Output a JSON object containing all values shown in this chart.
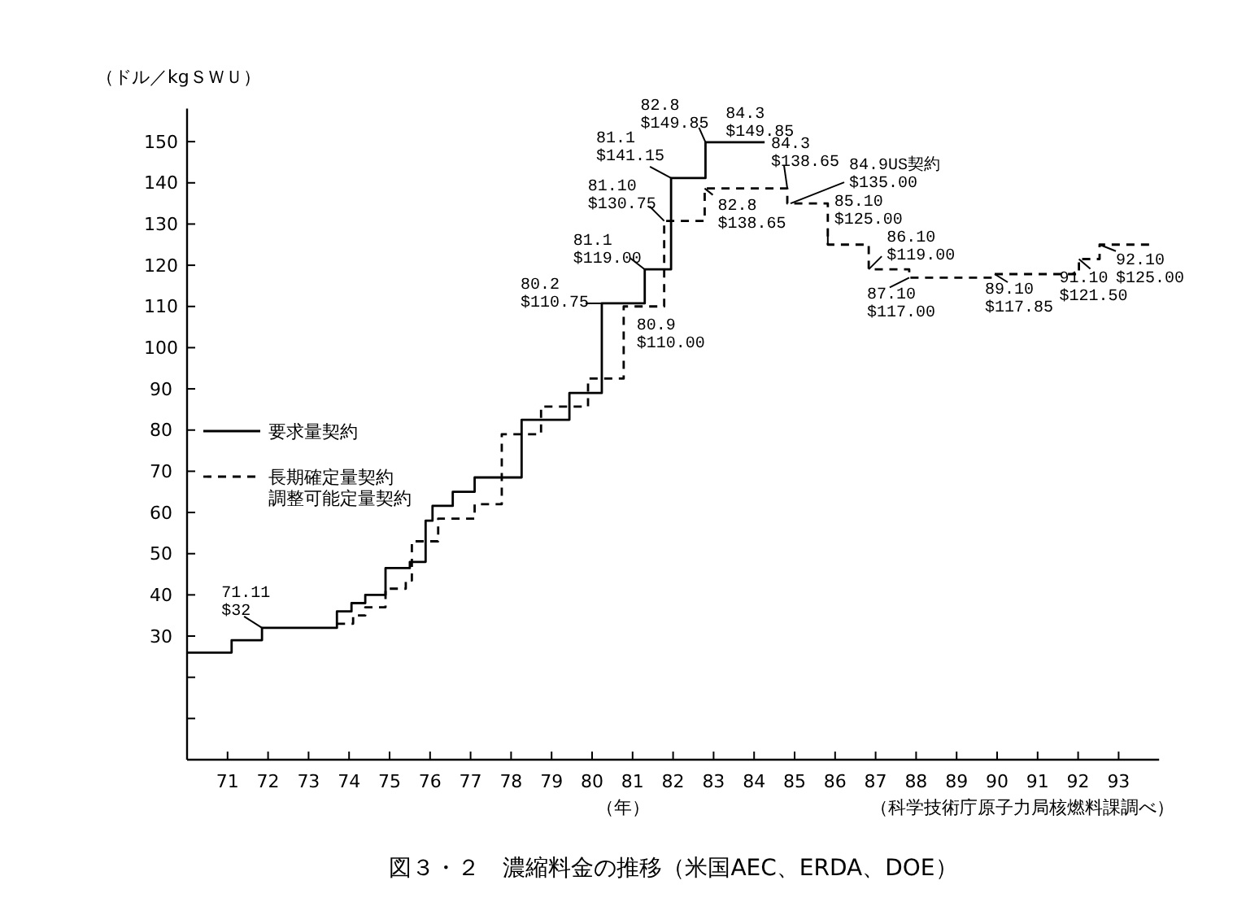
{
  "chart_data": {
    "type": "step",
    "title": "図３・２　濃縮料金の推移（米国AEC、ERDA、DOE）",
    "xlabel": "（年）",
    "ylabel": "（ドル／kgＳＷＵ）",
    "xlim": [
      70,
      94
    ],
    "xticks": [
      71,
      72,
      73,
      74,
      75,
      76,
      77,
      78,
      79,
      80,
      81,
      82,
      83,
      84,
      85,
      86,
      87,
      88,
      89,
      90,
      91,
      92,
      93
    ],
    "ylim": [
      0,
      158
    ],
    "yticks": [
      {
        "value": 10,
        "label": null
      },
      {
        "value": 20,
        "label": null
      },
      30,
      40,
      50,
      60,
      70,
      80,
      90,
      100,
      110,
      120,
      130,
      140,
      150
    ],
    "grid": false,
    "legend": "left",
    "marker": "none",
    "series": [
      {
        "name": "要求量契約",
        "color": "#000000",
        "line_style": "solid",
        "x": [
          70,
          71.1,
          71.85,
          73.7,
          74.06,
          74.4,
          74.9,
          75.5,
          75.89,
          76.06,
          76.56,
          77.1,
          78.26,
          79.44,
          80.24,
          81.3,
          81.95,
          82.8,
          84.26
        ],
        "values": [
          26,
          29,
          32,
          36,
          38,
          40,
          46.5,
          48,
          58,
          61.6,
          65,
          68.5,
          82.5,
          89,
          110.75,
          119,
          141.15,
          149.85,
          149.85
        ]
      },
      {
        "name": "長期確定量契約調整可能定量契約",
        "color": "#000000",
        "line_style": "dashed",
        "x": [
          73.7,
          74.1,
          74.4,
          74.9,
          75.4,
          75.55,
          76.2,
          77.1,
          77.77,
          78.74,
          79.9,
          80.78,
          81.78,
          82.78,
          84.82,
          85.82,
          86.83,
          87.83,
          89.94,
          92.02,
          92.53,
          93.8
        ],
        "values": [
          33,
          35,
          37,
          41.5,
          43.5,
          53,
          58.5,
          62,
          79,
          85.7,
          92.5,
          110,
          130.75,
          138.65,
          135,
          125,
          119,
          117,
          117.85,
          121.5,
          125,
          125
        ]
      }
    ],
    "annotations": [
      {
        "text": "71.11\n$32",
        "x": 71.85,
        "y": 32
      },
      {
        "text": "80.2\n$110.75",
        "x": 80.24,
        "y": 110.75
      },
      {
        "text": "81.1\n$119.00",
        "x": 81.3,
        "y": 119
      },
      {
        "text": "81.10\n$130.75",
        "x": 81.78,
        "y": 130.75
      },
      {
        "text": "81.1\n$141.15",
        "x": 81.95,
        "y": 141.15
      },
      {
        "text": "82.8\n$149.85",
        "x": 82.8,
        "y": 149.85
      },
      {
        "text": "84.3\n$149.85",
        "x": 84.26,
        "y": 149.85
      },
      {
        "text": "82.8\n$138.65",
        "x": 82.78,
        "y": 138.65
      },
      {
        "text": "84.3\n$138.65",
        "x": 84.82,
        "y": 138.65
      },
      {
        "text": "84.9US契約\n$135.00",
        "x": 84.9,
        "y": 135
      },
      {
        "text": "85.10\n$125.00",
        "x": 85.82,
        "y": 125
      },
      {
        "text": "86.10\n$119.00",
        "x": 86.83,
        "y": 119
      },
      {
        "text": "87.10\n$117.00",
        "x": 87.83,
        "y": 117
      },
      {
        "text": "89.10\n$117.85",
        "x": 89.94,
        "y": 117.85
      },
      {
        "text": "91.10\n$121.50",
        "x": 92.02,
        "y": 121.5
      },
      {
        "text": "92.10\n$125.00",
        "x": 92.53,
        "y": 125
      },
      {
        "text": "80.9\n$110.00",
        "x": 80.78,
        "y": 110
      },
      "（科学技術庁原子力局核燃料課調べ）"
    ]
  }
}
